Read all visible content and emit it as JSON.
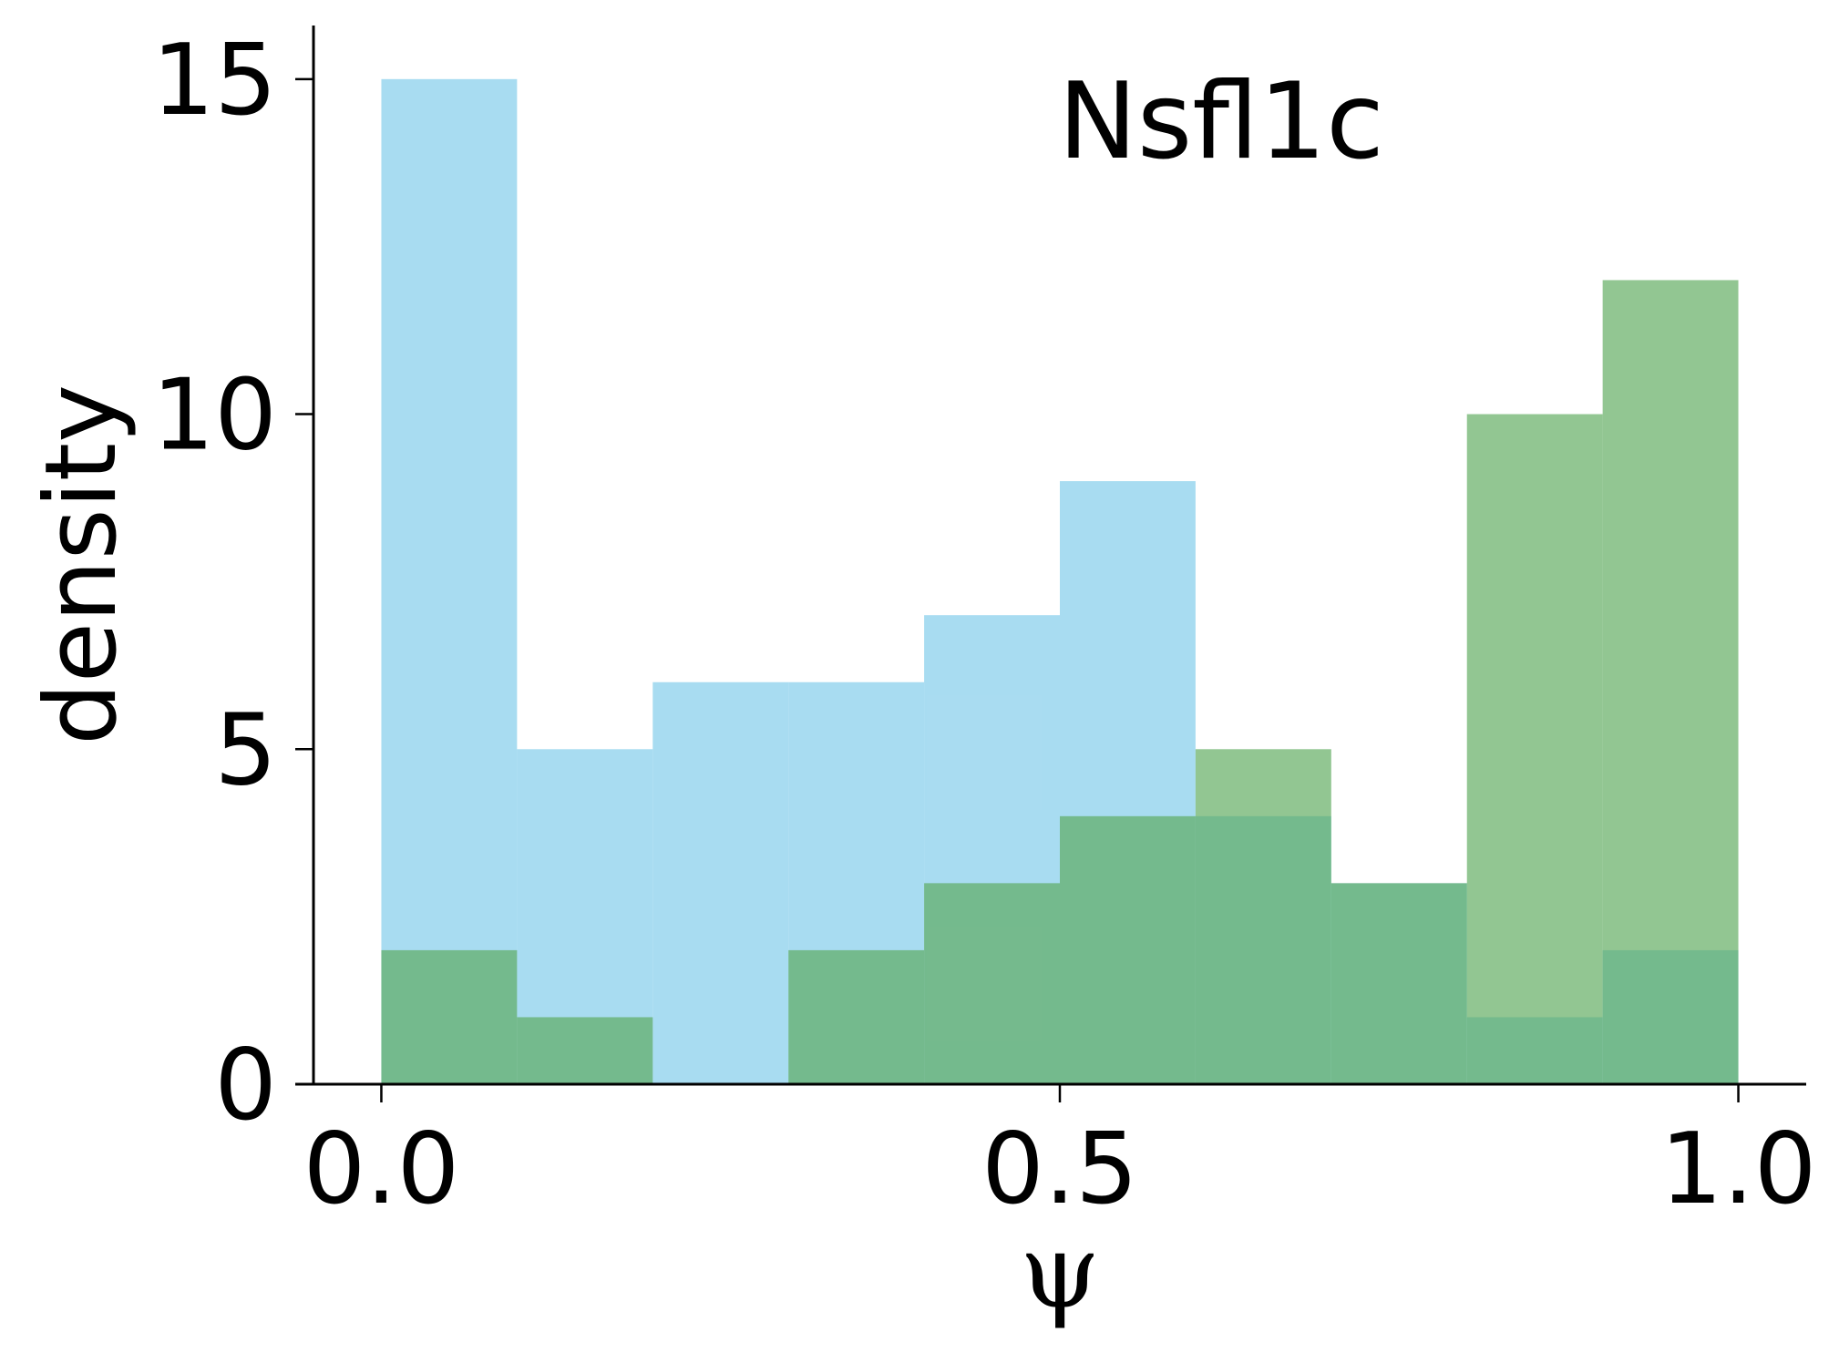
{
  "chart_data": {
    "type": "bar",
    "title": "Nsfl1c",
    "xlabel": "ψ",
    "ylabel": "density",
    "xlim": [
      -0.05,
      1.05
    ],
    "ylim": [
      0,
      15.8
    ],
    "x_ticks": [
      0.0,
      0.5,
      1.0
    ],
    "x_tick_labels": [
      "0.0",
      "0.5",
      "1.0"
    ],
    "y_ticks": [
      0,
      5,
      10,
      15
    ],
    "y_tick_labels": [
      "0",
      "5",
      "10",
      "15"
    ],
    "bin_edges": [
      0.0,
      0.1,
      0.2,
      0.3,
      0.4,
      0.5,
      0.6,
      0.7,
      0.8,
      0.9,
      1.0
    ],
    "grid": false,
    "legend": "none",
    "series": [
      {
        "color": "#87ceeb",
        "opacity": 0.72,
        "values": [
          15,
          5,
          6,
          6,
          7,
          9,
          4,
          3,
          1,
          2
        ]
      },
      {
        "color": "#5aa85a",
        "opacity": 0.66,
        "values": [
          2,
          1,
          0,
          2,
          3,
          4,
          5,
          3,
          10,
          12
        ]
      }
    ]
  }
}
